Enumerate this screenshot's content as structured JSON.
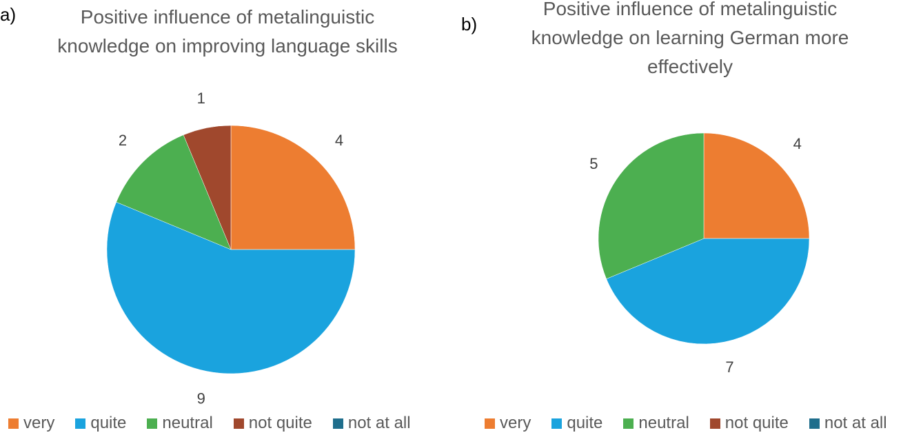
{
  "chart_data": [
    {
      "panel": "a)",
      "type": "pie",
      "title": "Positive influence of metalinguistic knowledge on improving language skills",
      "title_lines": [
        "Positive influence of metalinguistic",
        "knowledge on improving language skills"
      ],
      "categories": [
        "very",
        "quite",
        "neutral",
        "not quite",
        "not at all"
      ],
      "values": [
        4,
        9,
        2,
        1,
        0
      ],
      "colors": [
        "#ED7D31",
        "#1AA3DE",
        "#4CAF50",
        "#A0482D",
        "#1F6E8C"
      ],
      "legend": {
        "position": "bottom",
        "labels": [
          "very",
          "quite",
          "neutral",
          "not quite",
          "not at all"
        ]
      }
    },
    {
      "panel": "b)",
      "type": "pie",
      "title": "Positive influence of metalinguistic knowledge on learning German more effectively",
      "title_lines": [
        "Positive influence of metalinguistic",
        "knowledge on learning German more",
        "effectively"
      ],
      "categories": [
        "very",
        "quite",
        "neutral",
        "not quite",
        "not at all"
      ],
      "values": [
        4,
        7,
        5,
        0,
        0
      ],
      "colors": [
        "#ED7D31",
        "#1AA3DE",
        "#4CAF50",
        "#A0482D",
        "#1F6E8C"
      ],
      "legend": {
        "position": "bottom",
        "labels": [
          "very",
          "quite",
          "neutral",
          "not quite",
          "not at all"
        ]
      }
    }
  ]
}
